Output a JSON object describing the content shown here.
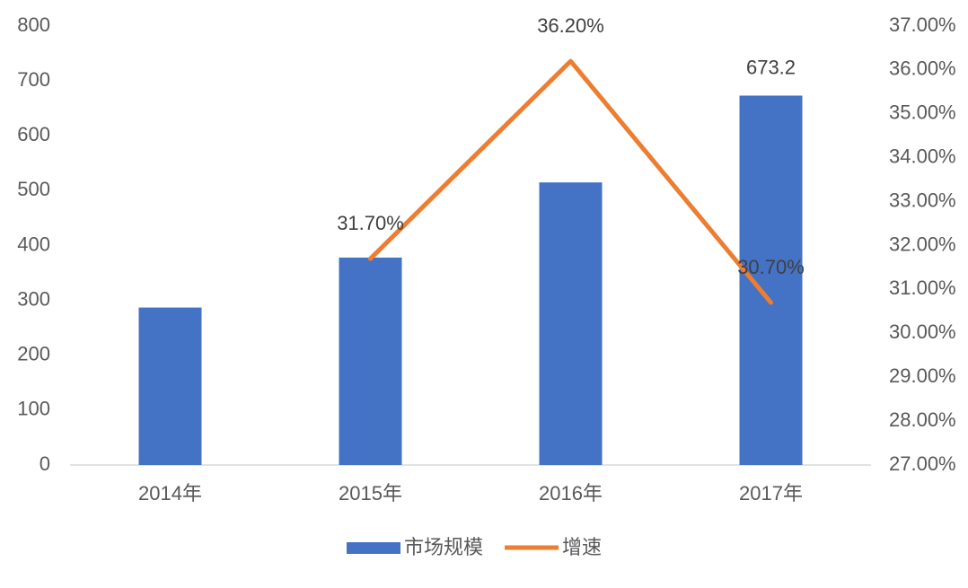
{
  "chart_data": {
    "type": "bar",
    "categories": [
      "2014年",
      "2015年",
      "2016年",
      "2017年"
    ],
    "series": [
      {
        "name": "市场规模",
        "type": "bar",
        "color": "#4472c4",
        "values": [
          287,
          378,
          515,
          673.2
        ],
        "value_labels": [
          null,
          null,
          null,
          "673.2"
        ]
      },
      {
        "name": "增速",
        "type": "line",
        "axis": "y2",
        "color": "#ed7d31",
        "values": [
          null,
          31.7,
          36.2,
          30.7
        ],
        "value_labels": [
          null,
          "31.70%",
          "36.20%",
          "30.70%"
        ]
      }
    ],
    "ylim": [
      0,
      800
    ],
    "yticks": [
      0,
      100,
      200,
      300,
      400,
      500,
      600,
      700,
      800
    ],
    "y2lim": [
      27,
      37
    ],
    "y2ticks": [
      {
        "value": 27,
        "label": "27.00%"
      },
      {
        "value": 28,
        "label": "28.00%"
      },
      {
        "value": 29,
        "label": "29.00%"
      },
      {
        "value": 30,
        "label": "30.00%"
      },
      {
        "value": 31,
        "label": "31.00%"
      },
      {
        "value": 32,
        "label": "32.00%"
      },
      {
        "value": 33,
        "label": "33.00%"
      },
      {
        "value": 34,
        "label": "34.00%"
      },
      {
        "value": 35,
        "label": "35.00%"
      },
      {
        "value": 36,
        "label": "36.00%"
      },
      {
        "value": 37,
        "label": "37.00%"
      }
    ],
    "grid": false,
    "legend": "bottom"
  }
}
